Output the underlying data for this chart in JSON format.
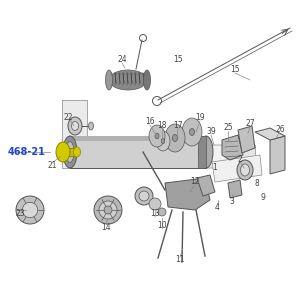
{
  "bg_color": "#ffffff",
  "line_color": "#888888",
  "dark_line": "#555555",
  "label_color": "#444444",
  "part_label_color": "#2244cc",
  "figsize": [
    3.0,
    3.0
  ],
  "dpi": 100,
  "part_label": "468-21",
  "nozzle_yellow": "#d4c800",
  "nozzle_yellow2": "#c8bc00",
  "gray_light": "#cccccc",
  "gray_mid": "#aaaaaa",
  "gray_dark": "#888888",
  "gray_darker": "#666666"
}
